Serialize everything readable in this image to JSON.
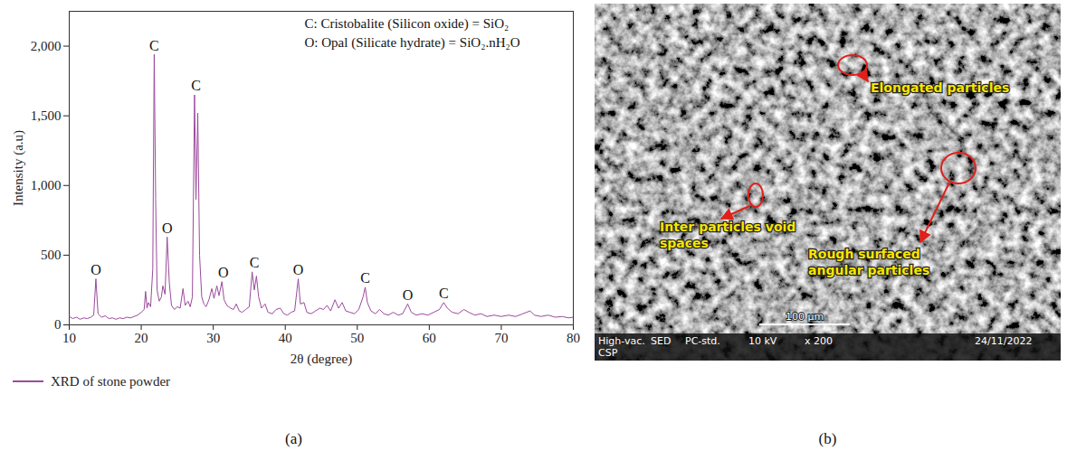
{
  "chart_data": {
    "type": "line",
    "panel": "(a)",
    "x": [
      10,
      10.5,
      11,
      11.5,
      12,
      12.5,
      13,
      13.4,
      13.7,
      14,
      14.5,
      15,
      15.5,
      16,
      16.5,
      17,
      17.5,
      18,
      18.5,
      19,
      19.5,
      20,
      20.4,
      20.6,
      20.8,
      21,
      21.3,
      21.6,
      21.8,
      22,
      22.2,
      22.5,
      22.8,
      23,
      23.3,
      23.6,
      23.9,
      24.2,
      24.6,
      25,
      25.4,
      25.8,
      26.1,
      26.5,
      26.8,
      27.1,
      27.4,
      27.6,
      27.85,
      28.1,
      28.4,
      28.7,
      29,
      29.4,
      29.8,
      30.1,
      30.5,
      30.8,
      31.2,
      31.5,
      31.9,
      32.4,
      32.8,
      33.2,
      33.6,
      34,
      34.5,
      35,
      35.4,
      35.7,
      36,
      36.3,
      36.7,
      37.2,
      37.6,
      38.2,
      38.7,
      39.3,
      39.8,
      40.3,
      40.8,
      41.3,
      41.8,
      42.1,
      42.6,
      43,
      43.6,
      44.2,
      44.8,
      45.3,
      45.8,
      46.3,
      46.9,
      47.4,
      47.9,
      48.4,
      49,
      49.6,
      50.2,
      50.8,
      51.1,
      51.4,
      51.9,
      52.5,
      53.1,
      53.7,
      54.3,
      55,
      55.7,
      56.3,
      57,
      57.5,
      58.2,
      59,
      59.8,
      60.6,
      61.4,
      62,
      62.5,
      63.2,
      64,
      64.8,
      65.5,
      66.3,
      67.2,
      68,
      69,
      70,
      71,
      72,
      73,
      74,
      74.6,
      75.5,
      76.5,
      77.5,
      78.5,
      79.3,
      80
    ],
    "series": [
      {
        "name": "XRD of stone powder",
        "color": "#9b4a9b",
        "values": [
          60,
          45,
          55,
          40,
          50,
          45,
          55,
          70,
          330,
          80,
          55,
          65,
          45,
          50,
          40,
          50,
          45,
          55,
          50,
          60,
          70,
          90,
          110,
          240,
          120,
          160,
          130,
          400,
          1940,
          900,
          250,
          170,
          200,
          280,
          220,
          630,
          300,
          140,
          110,
          130,
          120,
          260,
          140,
          170,
          130,
          200,
          1650,
          900,
          1520,
          500,
          200,
          150,
          130,
          180,
          260,
          190,
          280,
          210,
          310,
          180,
          140,
          120,
          110,
          150,
          100,
          90,
          110,
          130,
          380,
          250,
          350,
          200,
          120,
          150,
          90,
          80,
          110,
          120,
          80,
          70,
          90,
          100,
          330,
          150,
          160,
          90,
          80,
          100,
          120,
          110,
          140,
          100,
          180,
          120,
          160,
          100,
          90,
          80,
          110,
          200,
          270,
          160,
          100,
          80,
          110,
          80,
          70,
          90,
          70,
          80,
          150,
          90,
          70,
          80,
          70,
          90,
          110,
          160,
          120,
          90,
          80,
          110,
          90,
          70,
          80,
          60,
          70,
          60,
          70,
          60,
          80,
          100,
          70,
          60,
          70,
          55,
          60,
          50,
          55
        ]
      }
    ],
    "xlabel": "2θ (degree)",
    "ylabel": "Intensity (a.u)",
    "xlim": [
      10,
      80
    ],
    "ylim": [
      0,
      2250
    ],
    "xticks": [
      10,
      20,
      30,
      40,
      50,
      60,
      70,
      80
    ],
    "yticks": [
      0,
      500,
      {
        "value": 1000,
        "label": "1,000"
      },
      {
        "value": 1500,
        "label": "1,500"
      },
      {
        "value": 2000,
        "label": "2,000"
      }
    ],
    "annotations": [
      {
        "text": "O",
        "x": 13.7,
        "y": 360
      },
      {
        "text": "C",
        "x": 21.8,
        "y": 1965
      },
      {
        "text": "O",
        "x": 23.6,
        "y": 660
      },
      {
        "text": "C",
        "x": 27.6,
        "y": 1680
      },
      {
        "text": "O",
        "x": 31.4,
        "y": 340
      },
      {
        "text": "C",
        "x": 35.7,
        "y": 410
      },
      {
        "text": "O",
        "x": 41.8,
        "y": 360
      },
      {
        "text": "C",
        "x": 51.1,
        "y": 300
      },
      {
        "text": "O",
        "x": 57.0,
        "y": 180
      },
      {
        "text": "C",
        "x": 62.0,
        "y": 190
      }
    ],
    "notes": [
      "C: Cristobalite (Silicon oxide) = SiO₂",
      "O: Opal (Silicate hydrate) = SiO₂.nH₂O"
    ],
    "legend": "bottom"
  },
  "micrograph": {
    "panel": "(b)",
    "annotations": [
      "Elongated particles",
      "Inter particles void spaces",
      "Rough surfaced angular particles"
    ],
    "scale_bar": "100 μm",
    "info_bar": [
      "High-vac.",
      "SED",
      "PC-std.",
      "10 kV",
      "x 200",
      "24/11/2022"
    ],
    "info_bar_line2": "CSP"
  }
}
